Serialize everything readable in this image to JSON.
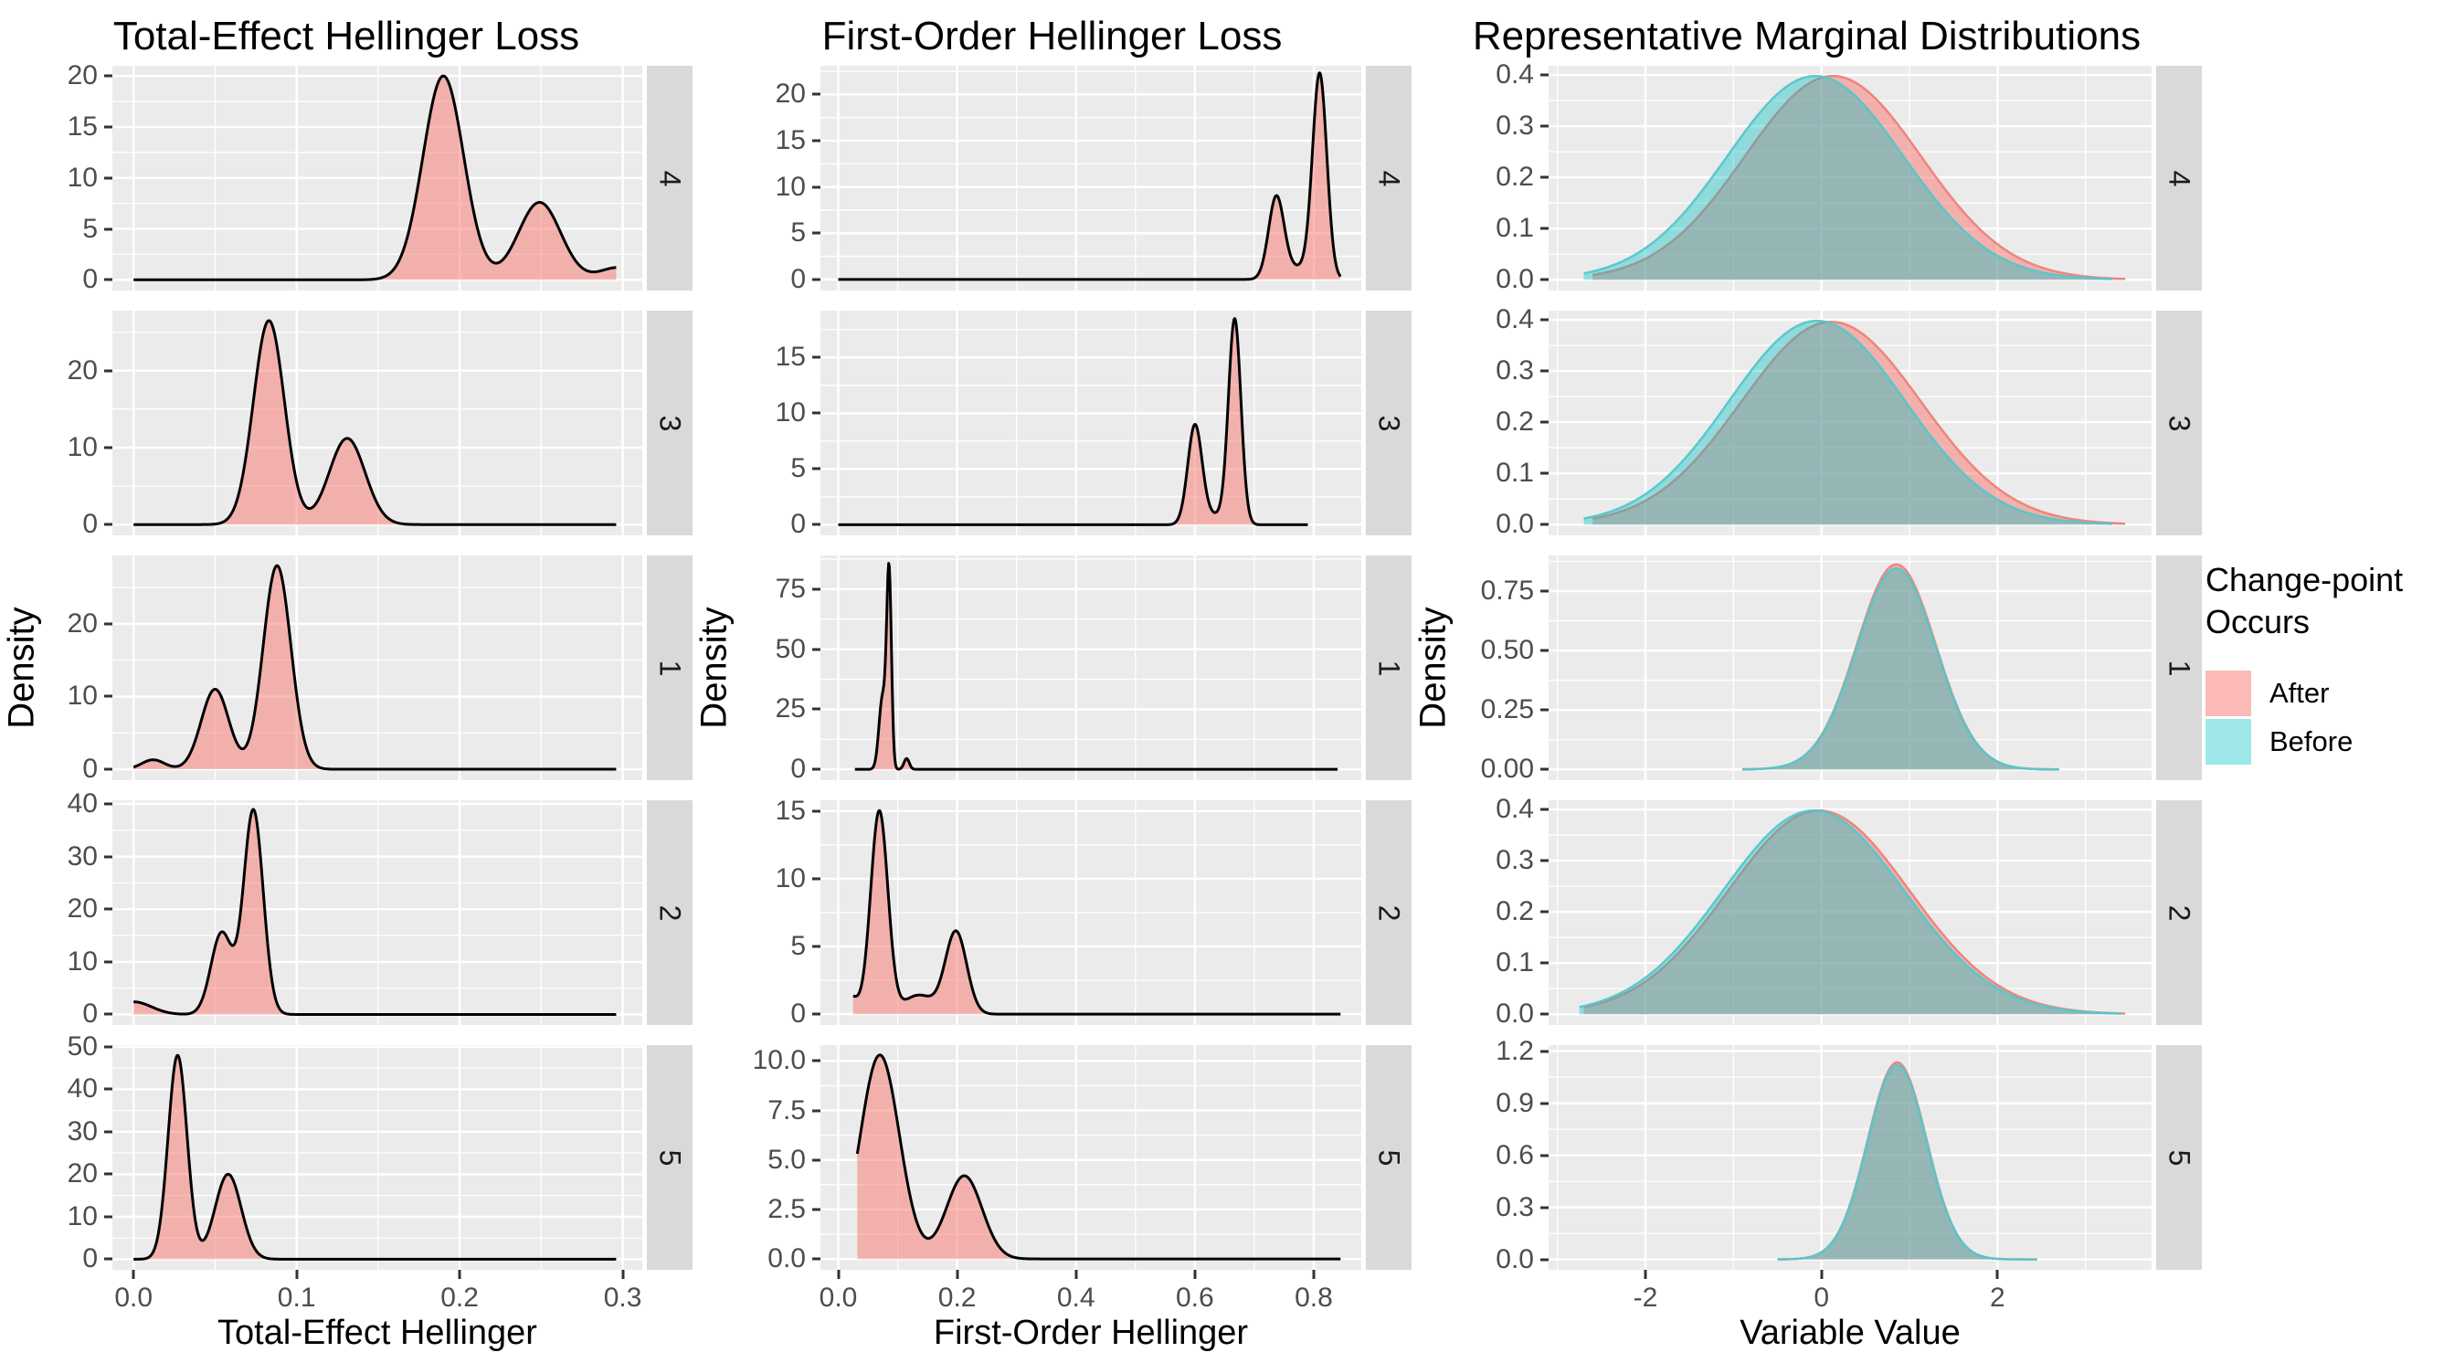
{
  "colors": {
    "panel_bg": "#EBEBEB",
    "strip_bg": "#D9D9D9",
    "grid": "#FFFFFF",
    "tick_mark": "#333333",
    "tick_text": "#4D4D4D",
    "after_base": "#F8766D",
    "before_base": "#00BFC4"
  },
  "legend": {
    "title_lines": [
      "Change-point",
      "Occurs"
    ],
    "items": [
      {
        "label": "After",
        "fill": "rgba(248,118,109,0.5)"
      },
      {
        "label": "Before",
        "fill": "rgba(0,191,196,0.38)"
      }
    ]
  },
  "chart_data": [
    {
      "type": "density",
      "title": "Total-Effect Hellinger Loss",
      "xlabel": "Total-Effect Hellinger",
      "ylabel": "Density",
      "xlim": [
        -0.013,
        0.312
      ],
      "x_ticks": [
        0,
        0.1,
        0.2,
        0.3
      ],
      "x_tick_labels": [
        "0.0",
        "0.1",
        "0.2",
        "0.3"
      ],
      "panels": [
        {
          "facet": "4",
          "ylim": [
            -1.05,
            21
          ],
          "y_ticks": [
            0,
            5,
            10,
            15,
            20
          ],
          "y_tick_labels": [
            "0",
            "5",
            "10",
            "15",
            "20"
          ],
          "series": [
            {
              "name": "After",
              "fill": "rgba(248,118,109,0.5)",
              "stroke": "#000000",
              "sw": 3,
              "domain": [
                0,
                0.296
              ],
              "peaks": [
                [
                  0.19,
                  0.0125,
                  20
                ],
                [
                  0.249,
                  0.013,
                  7.6
                ],
                [
                  0.297,
                  0.011,
                  1.2
                ]
              ]
            }
          ]
        },
        {
          "facet": "3",
          "ylim": [
            -1.4,
            27.8
          ],
          "y_ticks": [
            0,
            10,
            20
          ],
          "y_tick_labels": [
            "0",
            "10",
            "20"
          ],
          "series": [
            {
              "name": "After",
              "fill": "rgba(248,118,109,0.5)",
              "stroke": "#000000",
              "sw": 3,
              "domain": [
                0,
                0.296
              ],
              "peaks": [
                [
                  0.083,
                  0.0095,
                  26.5
                ],
                [
                  0.131,
                  0.011,
                  11.2
                ]
              ]
            }
          ]
        },
        {
          "facet": "1",
          "ylim": [
            -1.5,
            29.4
          ],
          "y_ticks": [
            0,
            10,
            20
          ],
          "y_tick_labels": [
            "0",
            "10",
            "20"
          ],
          "series": [
            {
              "name": "After",
              "fill": "rgba(248,118,109,0.5)",
              "stroke": "#000000",
              "sw": 3,
              "domain": [
                0,
                0.296
              ],
              "peaks": [
                [
                  0.012,
                  0.007,
                  1.3
                ],
                [
                  0.05,
                  0.0085,
                  11
                ],
                [
                  0.088,
                  0.0085,
                  28
                ]
              ]
            }
          ]
        },
        {
          "facet": "2",
          "ylim": [
            -2,
            40.7
          ],
          "y_ticks": [
            0,
            10,
            20,
            30,
            40
          ],
          "y_tick_labels": [
            "0",
            "10",
            "20",
            "30",
            "40"
          ],
          "series": [
            {
              "name": "After",
              "fill": "rgba(248,118,109,0.5)",
              "stroke": "#000000",
              "sw": 3,
              "domain": [
                0,
                0.296
              ],
              "peaks": [
                [
                  0.0,
                  0.011,
                  2.4
                ],
                [
                  0.054,
                  0.0065,
                  15.5
                ],
                [
                  0.0735,
                  0.006,
                  38.8
                ]
              ]
            }
          ]
        },
        {
          "facet": "5",
          "ylim": [
            -2.5,
            50.4
          ],
          "y_ticks": [
            0,
            10,
            20,
            30,
            40,
            50
          ],
          "y_tick_labels": [
            "0",
            "10",
            "20",
            "30",
            "40",
            "50"
          ],
          "series": [
            {
              "name": "After",
              "fill": "rgba(248,118,109,0.5)",
              "stroke": "#000000",
              "sw": 3,
              "domain": [
                0,
                0.296
              ],
              "peaks": [
                [
                  0.027,
                  0.0058,
                  48
                ],
                [
                  0.058,
                  0.008,
                  20
                ]
              ]
            }
          ]
        }
      ]
    },
    {
      "type": "density",
      "title": "First-Order Hellinger Loss",
      "xlabel": "First-Order Hellinger",
      "ylabel": "Density",
      "xlim": [
        -0.03,
        0.88
      ],
      "x_ticks": [
        0,
        0.2,
        0.4,
        0.6,
        0.8
      ],
      "x_tick_labels": [
        "0.0",
        "0.2",
        "0.4",
        "0.6",
        "0.8"
      ],
      "panels": [
        {
          "facet": "4",
          "ylim": [
            -1.2,
            23.1
          ],
          "y_ticks": [
            0,
            5,
            10,
            15,
            20
          ],
          "y_tick_labels": [
            "0",
            "5",
            "10",
            "15",
            "20"
          ],
          "series": [
            {
              "name": "After",
              "fill": "rgba(248,118,109,0.5)",
              "stroke": "#000000",
              "sw": 3,
              "domain": [
                0,
                0.845
              ],
              "peaks": [
                [
                  0.737,
                  0.013,
                  8.8
                ],
                [
                  0.81,
                  0.012,
                  22
                ],
                [
                  0.775,
                  0.022,
                  1.2
                ]
              ]
            }
          ]
        },
        {
          "facet": "3",
          "ylim": [
            -0.95,
            19.2
          ],
          "y_ticks": [
            0,
            5,
            10,
            15
          ],
          "y_tick_labels": [
            "0",
            "5",
            "10",
            "15"
          ],
          "series": [
            {
              "name": "After",
              "fill": "rgba(248,118,109,0.5)",
              "stroke": "#000000",
              "sw": 3,
              "domain": [
                0,
                0.79
              ],
              "peaks": [
                [
                  0.6,
                  0.012,
                  8.8
                ],
                [
                  0.667,
                  0.0105,
                  18.3
                ],
                [
                  0.633,
                  0.02,
                  0.8
                ]
              ]
            }
          ]
        },
        {
          "facet": "1",
          "ylim": [
            -4.5,
            89
          ],
          "y_ticks": [
            0,
            25,
            50,
            75
          ],
          "y_tick_labels": [
            "0",
            "25",
            "50",
            "75"
          ],
          "series": [
            {
              "name": "After",
              "fill": "rgba(248,118,109,0.5)",
              "stroke": "#000000",
              "sw": 3,
              "domain": [
                0.028,
                0.84
              ],
              "peaks": [
                [
                  0.0745,
                  0.006,
                  30
                ],
                [
                  0.0855,
                  0.004,
                  80
                ],
                [
                  0.115,
                  0.0045,
                  4.5
                ]
              ]
            }
          ]
        },
        {
          "facet": "2",
          "ylim": [
            -0.8,
            15.8
          ],
          "y_ticks": [
            0,
            5,
            10,
            15
          ],
          "y_tick_labels": [
            "0",
            "5",
            "10",
            "15"
          ],
          "series": [
            {
              "name": "After",
              "fill": "rgba(248,118,109,0.5)",
              "stroke": "#000000",
              "sw": 3,
              "domain": [
                0.025,
                0.845
              ],
              "peaks": [
                [
                  0.02,
                  0.012,
                  1.3
                ],
                [
                  0.069,
                  0.0145,
                  15
                ],
                [
                  0.135,
                  0.025,
                  1.4
                ],
                [
                  0.198,
                  0.018,
                  6.1
                ]
              ]
            }
          ]
        },
        {
          "facet": "5",
          "ylim": [
            -0.55,
            10.8
          ],
          "y_ticks": [
            0,
            2.5,
            5,
            7.5,
            10
          ],
          "y_tick_labels": [
            "0.0",
            "2.5",
            "5.0",
            "7.5",
            "10.0"
          ],
          "series": [
            {
              "name": "After",
              "fill": "rgba(248,118,109,0.5)",
              "stroke": "#000000",
              "sw": 3,
              "domain": [
                0.032,
                0.845
              ],
              "peaks": [
                [
                  0.07,
                  0.033,
                  10.3
                ],
                [
                  0.212,
                  0.03,
                  4.2
                ]
              ]
            }
          ]
        }
      ]
    },
    {
      "type": "density",
      "title": "Representative Marginal Distributions",
      "xlabel": "Variable Value",
      "ylabel": "Density",
      "xlim": [
        -3.1,
        3.75
      ],
      "x_ticks": [
        -2,
        0,
        2
      ],
      "x_tick_labels": [
        "-2",
        "0",
        "2"
      ],
      "panels": [
        {
          "facet": "4",
          "ylim": [
            -0.021,
            0.418
          ],
          "y_ticks": [
            0,
            0.1,
            0.2,
            0.3,
            0.4
          ],
          "y_tick_labels": [
            "0.0",
            "0.1",
            "0.2",
            "0.3",
            "0.4"
          ],
          "series": [
            {
              "name": "After",
              "fill": "rgba(248,118,109,0.5)",
              "stroke": "rgba(237,130,121,0.95)",
              "sw": 2.5,
              "domain": [
                -2.6,
                3.45
              ],
              "peaks": [
                [
                  0.13,
                  1.0,
                  0.398
                ]
              ]
            },
            {
              "name": "Before",
              "fill": "rgba(0,191,196,0.38)",
              "stroke": "rgba(84,199,203,0.95)",
              "sw": 2.5,
              "domain": [
                -2.7,
                3.3
              ],
              "peaks": [
                [
                  -0.07,
                  1.0,
                  0.398
                ]
              ]
            }
          ]
        },
        {
          "facet": "3",
          "ylim": [
            -0.021,
            0.418
          ],
          "y_ticks": [
            0,
            0.1,
            0.2,
            0.3,
            0.4
          ],
          "y_tick_labels": [
            "0.0",
            "0.1",
            "0.2",
            "0.3",
            "0.4"
          ],
          "series": [
            {
              "name": "After",
              "fill": "rgba(248,118,109,0.5)",
              "stroke": "rgba(237,130,121,0.95)",
              "sw": 2.5,
              "domain": [
                -2.6,
                3.45
              ],
              "peaks": [
                [
                  0.11,
                  1.02,
                  0.396
                ]
              ]
            },
            {
              "name": "Before",
              "fill": "rgba(0,191,196,0.38)",
              "stroke": "rgba(84,199,203,0.95)",
              "sw": 2.5,
              "domain": [
                -2.7,
                3.3
              ],
              "peaks": [
                [
                  -0.05,
                  1.0,
                  0.398
                ]
              ]
            }
          ]
        },
        {
          "facet": "1",
          "ylim": [
            -0.045,
            0.9
          ],
          "y_ticks": [
            0,
            0.25,
            0.5,
            0.75
          ],
          "y_tick_labels": [
            "0.00",
            "0.25",
            "0.50",
            "0.75"
          ],
          "series": [
            {
              "name": "After",
              "fill": "rgba(248,118,109,0.5)",
              "stroke": "rgba(237,130,121,0.95)",
              "sw": 2.5,
              "domain": [
                -0.9,
                2.7
              ],
              "peaks": [
                [
                  0.85,
                  0.45,
                  0.862
                ]
              ]
            },
            {
              "name": "Before",
              "fill": "rgba(0,191,196,0.38)",
              "stroke": "rgba(84,199,203,0.95)",
              "sw": 2.5,
              "domain": [
                -0.9,
                2.7
              ],
              "peaks": [
                [
                  0.85,
                  0.45,
                  0.845
                ]
              ]
            }
          ]
        },
        {
          "facet": "2",
          "ylim": [
            -0.021,
            0.418
          ],
          "y_ticks": [
            0,
            0.1,
            0.2,
            0.3,
            0.4
          ],
          "y_tick_labels": [
            "0.0",
            "0.1",
            "0.2",
            "0.3",
            "0.4"
          ],
          "series": [
            {
              "name": "After",
              "fill": "rgba(248,118,109,0.5)",
              "stroke": "rgba(237,130,121,0.95)",
              "sw": 2.5,
              "domain": [
                -2.7,
                3.45
              ],
              "peaks": [
                [
                  -0.03,
                  1.03,
                  0.398
                ]
              ]
            },
            {
              "name": "Before",
              "fill": "rgba(0,191,196,0.38)",
              "stroke": "rgba(84,199,203,0.95)",
              "sw": 2.5,
              "domain": [
                -2.75,
                3.4
              ],
              "peaks": [
                [
                  -0.09,
                  1.03,
                  0.398
                ]
              ]
            }
          ]
        },
        {
          "facet": "5",
          "ylim": [
            -0.06,
            1.235
          ],
          "y_ticks": [
            0,
            0.3,
            0.6,
            0.9,
            1.2
          ],
          "y_tick_labels": [
            "0.0",
            "0.3",
            "0.6",
            "0.9",
            "1.2"
          ],
          "series": [
            {
              "name": "After",
              "fill": "rgba(248,118,109,0.5)",
              "stroke": "rgba(237,130,121,0.95)",
              "sw": 2.5,
              "domain": [
                -0.5,
                2.45
              ],
              "peaks": [
                [
                  0.86,
                  0.335,
                  1.135
                ]
              ]
            },
            {
              "name": "Before",
              "fill": "rgba(0,191,196,0.38)",
              "stroke": "rgba(84,199,203,0.95)",
              "sw": 2.5,
              "domain": [
                -0.5,
                2.45
              ],
              "peaks": [
                [
                  0.86,
                  0.335,
                  1.12
                ]
              ]
            }
          ]
        }
      ]
    }
  ]
}
